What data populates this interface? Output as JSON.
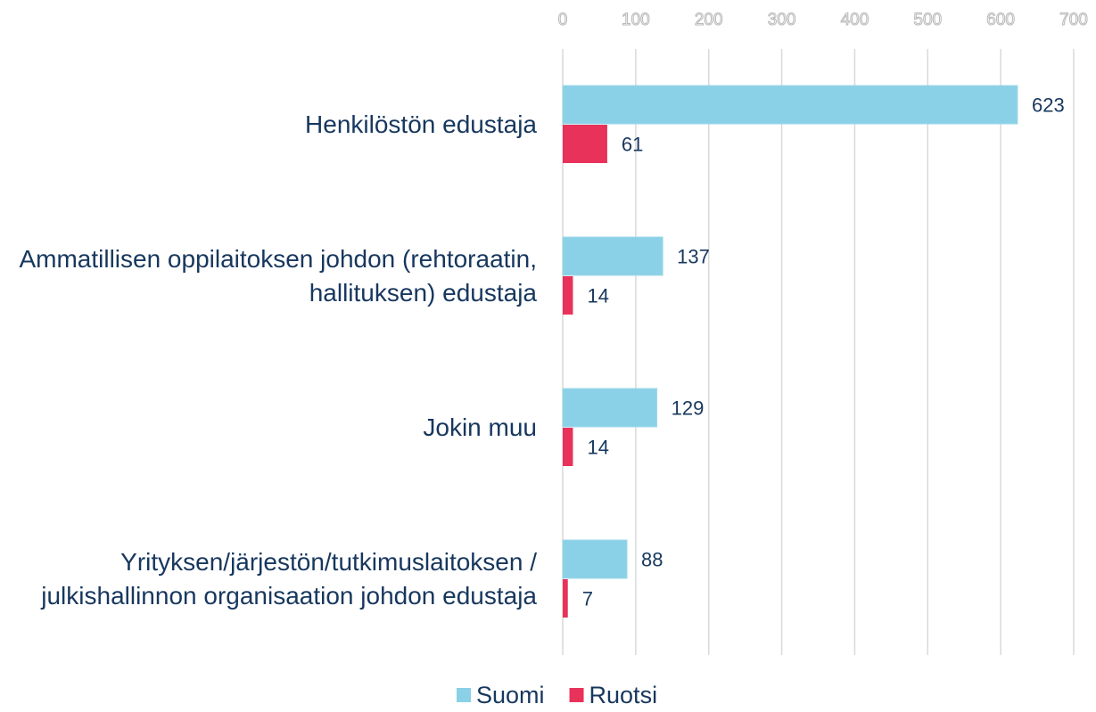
{
  "chart_data": {
    "type": "bar",
    "orientation": "horizontal",
    "categories": [
      "Henkilöstön edustaja",
      "Ammatillisen oppilaitoksen johdon (rehtoraatin, hallituksen) edustaja",
      "Jokin muu",
      "Yrityksen/järjestön/tutkimuslaitoksen / julkishallinnon organisaation johdon edustaja"
    ],
    "series": [
      {
        "name": "Suomi",
        "color": "#8ad0e6",
        "values": [
          623,
          137,
          129,
          88
        ]
      },
      {
        "name": "Ruotsi",
        "color": "#e8325a",
        "values": [
          61,
          14,
          14,
          7
        ]
      }
    ],
    "xlim": [
      0,
      700
    ],
    "xticks": [
      0,
      100,
      200,
      300,
      400,
      500,
      600,
      700
    ],
    "grid": true,
    "legend": "bottom"
  }
}
